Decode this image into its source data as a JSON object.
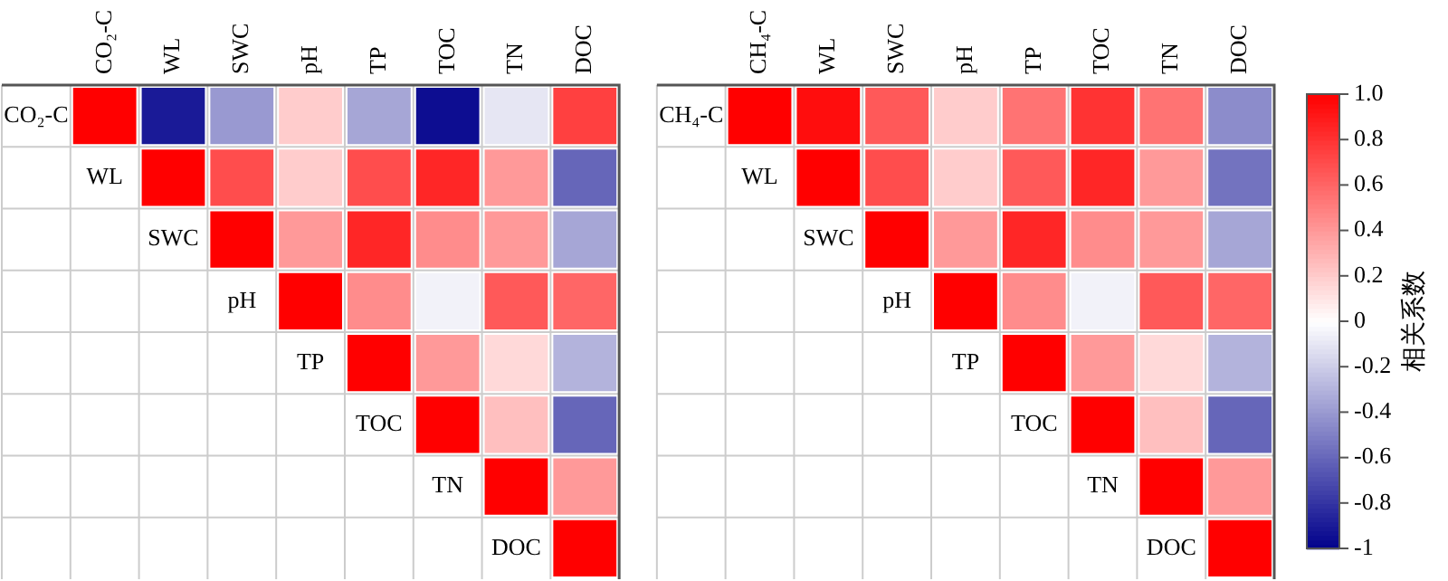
{
  "chart_data": {
    "type": "heatmap",
    "categories": [
      null,
      "CO₂-C",
      "WL",
      "SWC",
      "pH",
      "TP",
      "TOC",
      "TN",
      "DOC",
      null,
      "CH₄-C",
      "WL",
      "SWC",
      "pH",
      "TP",
      "TOC",
      "TN",
      "DOC"
    ],
    "y_categories": [
      "CO₂-C",
      "WL",
      "SWC",
      "pH",
      "TP",
      "TOC",
      "TN",
      "DOC"
    ],
    "y2_categories": [
      "CH₄-C",
      "WL",
      "SWC",
      "pH",
      "TP",
      "TOC",
      "TN",
      "DOC"
    ],
    "clim": [
      -1,
      1
    ],
    "cticks": [
      {
        "value": 1,
        "label": "1.0"
      },
      0.8,
      0.6,
      0.4,
      0.2,
      0,
      -0.2,
      -0.4,
      -0.6,
      -0.8,
      -1
    ],
    "clabel": "相关系数",
    "cells": [
      [
        null,
        1,
        -0.9,
        -0.4,
        0.2,
        -0.35,
        -0.95,
        -0.1,
        0.75,
        null,
        1,
        0.95,
        0.65,
        0.2,
        0.55,
        0.8,
        0.55,
        -0.45
      ],
      [
        null,
        null,
        1,
        0.7,
        0.2,
        0.7,
        0.85,
        0.4,
        -0.6,
        null,
        null,
        1,
        0.7,
        0.2,
        0.65,
        0.85,
        0.4,
        -0.55
      ],
      [
        null,
        null,
        null,
        1,
        0.4,
        0.85,
        0.45,
        0.4,
        -0.35,
        null,
        null,
        null,
        1,
        0.4,
        0.85,
        0.45,
        0.4,
        -0.35
      ],
      [
        null,
        null,
        null,
        null,
        1,
        0.45,
        -0.05,
        0.65,
        0.6,
        null,
        null,
        null,
        null,
        1,
        0.45,
        -0.05,
        0.65,
        0.6
      ],
      [
        null,
        null,
        null,
        null,
        null,
        1,
        0.4,
        0.15,
        -0.3,
        null,
        null,
        null,
        null,
        null,
        1,
        0.4,
        0.15,
        -0.3
      ],
      [
        null,
        null,
        null,
        null,
        null,
        null,
        1,
        0.25,
        -0.6,
        null,
        null,
        null,
        null,
        null,
        null,
        1,
        0.25,
        -0.6
      ],
      [
        null,
        null,
        null,
        null,
        null,
        null,
        null,
        1,
        0.4,
        null,
        null,
        null,
        null,
        null,
        null,
        null,
        1,
        0.4
      ],
      [
        null,
        null,
        null,
        null,
        null,
        null,
        null,
        null,
        1,
        null,
        null,
        null,
        null,
        null,
        null,
        null,
        null,
        1
      ]
    ]
  }
}
